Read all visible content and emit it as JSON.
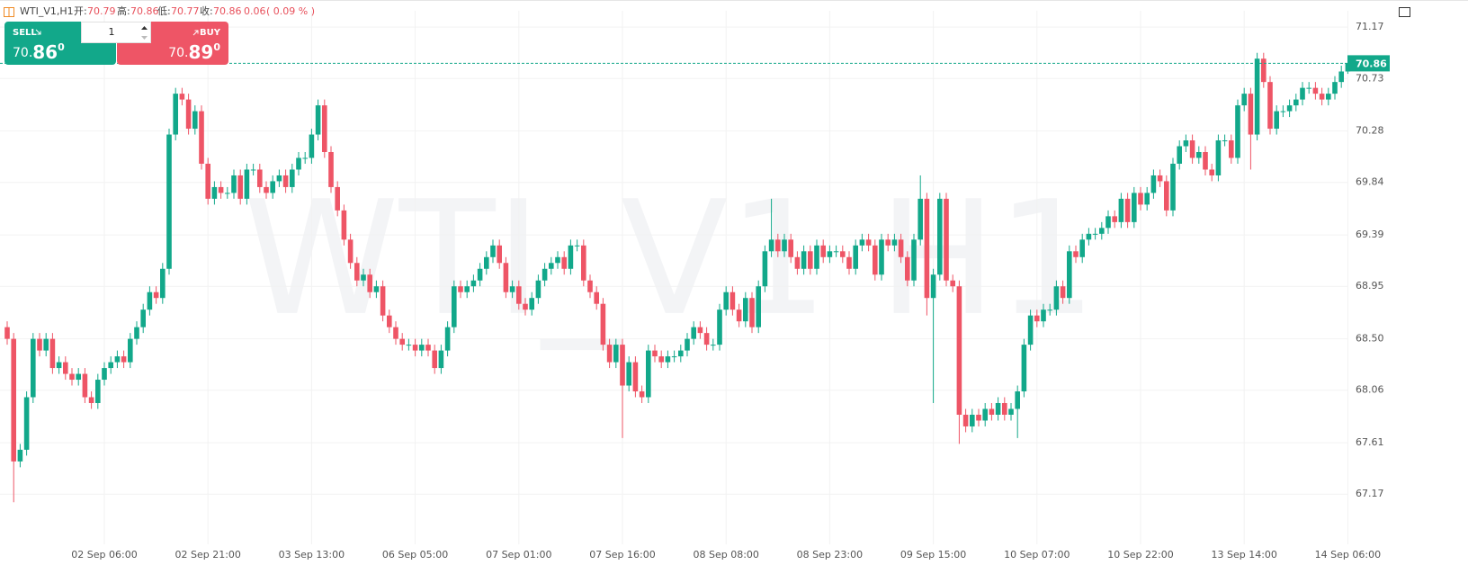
{
  "header": {
    "symbol": "WTI_V1,H1",
    "open_label": "开:",
    "open": 70.79,
    "high_label": "高:",
    "high": 70.86,
    "low_label": "低:",
    "low": 70.77,
    "close_label": "收:",
    "close": 70.86,
    "change": 0.06,
    "change_pct": "( 0.09 % )"
  },
  "trade": {
    "sell_label": "SELL",
    "buy_label": "BUY",
    "quantity": "1",
    "sell_price": {
      "main": "70.",
      "big": "86",
      "small": "0"
    },
    "buy_price": {
      "main": "70.",
      "big": "89",
      "small": "0"
    }
  },
  "chart_data": {
    "type": "candlestick",
    "watermark": "WTI_V1 H1",
    "up_color": "#12a88a",
    "down_color": "#ee5566",
    "grid": true,
    "last_price": 70.86,
    "ylim": [
      66.74,
      71.31
    ],
    "yticks": [
      71.17,
      70.73,
      70.28,
      69.84,
      69.39,
      68.95,
      {
        "value": 68.5,
        "label": "68.50"
      },
      68.06,
      67.61,
      67.17
    ],
    "x": [
      null,
      null,
      null,
      null,
      null,
      null,
      null,
      null,
      null,
      null,
      null,
      null,
      null,
      null,
      null,
      "02 Sep 06:00",
      null,
      null,
      null,
      null,
      null,
      null,
      null,
      null,
      null,
      null,
      null,
      null,
      null,
      null,
      null,
      "02 Sep 21:00",
      null,
      null,
      null,
      null,
      null,
      null,
      null,
      null,
      null,
      null,
      null,
      null,
      null,
      null,
      null,
      "03 Sep 13:00",
      null,
      null,
      null,
      null,
      null,
      null,
      null,
      null,
      null,
      null,
      null,
      null,
      null,
      null,
      null,
      "06 Sep 05:00",
      null,
      null,
      null,
      null,
      null,
      null,
      null,
      null,
      null,
      null,
      null,
      null,
      null,
      null,
      null,
      "07 Sep 01:00",
      null,
      null,
      null,
      null,
      null,
      null,
      null,
      null,
      null,
      null,
      null,
      null,
      null,
      null,
      null,
      "07 Sep 16:00",
      null,
      null,
      null,
      null,
      null,
      null,
      null,
      null,
      null,
      null,
      null,
      null,
      null,
      null,
      null,
      "08 Sep 08:00",
      null,
      null,
      null,
      null,
      null,
      null,
      null,
      null,
      null,
      null,
      null,
      null,
      null,
      null,
      null,
      "08 Sep 23:00",
      null,
      null,
      null,
      null,
      null,
      null,
      null,
      null,
      null,
      null,
      null,
      null,
      null,
      null,
      null,
      "09 Sep 15:00",
      null,
      null,
      null,
      null,
      null,
      null,
      null,
      null,
      null,
      null,
      null,
      null,
      null,
      null,
      null,
      "10 Sep 07:00",
      null,
      null,
      null,
      null,
      null,
      null,
      null,
      null,
      null,
      null,
      null,
      null,
      null,
      null,
      null,
      "10 Sep 22:00",
      null,
      null,
      null,
      null,
      null,
      null,
      null,
      null,
      null,
      null,
      null,
      null,
      null,
      null,
      null,
      "13 Sep 14:00",
      null,
      null,
      null,
      null,
      null,
      null,
      null,
      null,
      null,
      null,
      null,
      null,
      null,
      null,
      null,
      "14 Sep 06:00"
    ],
    "open": [
      68.6,
      68.5,
      67.45,
      67.55,
      68,
      68.5,
      68.4,
      68.5,
      68.25,
      68.3,
      68.2,
      68.15,
      68.2,
      68,
      67.95,
      68.15,
      68.25,
      68.3,
      68.35,
      68.3,
      68.5,
      68.6,
      68.75,
      68.9,
      68.85,
      69.1,
      70.25,
      70.6,
      70.55,
      70.3,
      70.45,
      70,
      69.7,
      69.8,
      69.75,
      69.75,
      69.9,
      69.7,
      69.95,
      69.95,
      69.8,
      69.75,
      69.85,
      69.9,
      69.8,
      69.95,
      70.05,
      70.05,
      70.25,
      70.5,
      70.1,
      69.8,
      69.6,
      69.35,
      69.15,
      69,
      69.05,
      68.9,
      68.95,
      68.7,
      68.6,
      68.5,
      68.45,
      68.45,
      68.4,
      68.45,
      68.4,
      68.25,
      68.4,
      68.6,
      68.95,
      68.9,
      68.95,
      69,
      69.1,
      69.2,
      69.3,
      69.15,
      68.9,
      68.95,
      68.8,
      68.75,
      68.85,
      69,
      69.1,
      69.15,
      69.2,
      69.1,
      69.3,
      69.3,
      69,
      68.9,
      68.8,
      68.45,
      68.3,
      68.45,
      68.1,
      68.3,
      68.05,
      68,
      68.4,
      68.35,
      68.3,
      68.35,
      68.35,
      68.4,
      68.5,
      68.6,
      68.55,
      68.45,
      68.45,
      68.75,
      68.9,
      68.75,
      68.65,
      68.85,
      68.6,
      68.95,
      69.25,
      69.35,
      69.25,
      69.35,
      69.2,
      69.1,
      69.25,
      69.1,
      69.3,
      69.2,
      69.25,
      69.25,
      69.2,
      69.1,
      69.3,
      69.35,
      69.3,
      69.05,
      69.35,
      69.3,
      69.35,
      69.2,
      69,
      69.35,
      69.7,
      68.85,
      69.05,
      69.7,
      69,
      68.95,
      67.85,
      67.75,
      67.85,
      67.8,
      67.9,
      67.85,
      67.95,
      67.85,
      67.9,
      68.05,
      68.45,
      68.7,
      68.65,
      68.75,
      68.75,
      68.95,
      68.85,
      69.25,
      69.2,
      69.35,
      69.4,
      69.4,
      69.45,
      69.55,
      69.5,
      69.7,
      69.5,
      69.75,
      69.65,
      69.75,
      69.9,
      69.85,
      69.6,
      70,
      70.15,
      70.2,
      70.05,
      70.1,
      69.95,
      69.9,
      70.2,
      70.2,
      70.05,
      70.5,
      70.6,
      70.25,
      70.9,
      70.7,
      70.3,
      70.45,
      70.45,
      70.5,
      70.55,
      70.65,
      70.65,
      70.6,
      70.55,
      70.6,
      70.7,
      70.79
    ],
    "high": [
      68.65,
      68.55,
      67.6,
      68.05,
      68.55,
      68.55,
      68.55,
      68.55,
      68.35,
      68.35,
      68.25,
      68.25,
      68.25,
      68.05,
      68.2,
      68.3,
      68.35,
      68.4,
      68.4,
      68.55,
      68.65,
      68.8,
      68.95,
      68.95,
      69.15,
      70.3,
      70.65,
      70.65,
      70.6,
      70.5,
      70.5,
      70.05,
      69.85,
      69.85,
      69.8,
      69.95,
      69.95,
      70,
      70,
      70,
      69.85,
      69.9,
      69.95,
      69.95,
      70,
      70.1,
      70.1,
      70.3,
      70.55,
      70.55,
      70.15,
      69.85,
      69.65,
      69.4,
      69.2,
      69.1,
      69.1,
      69,
      69,
      68.75,
      68.65,
      68.55,
      68.5,
      68.5,
      68.5,
      68.5,
      68.45,
      68.45,
      68.65,
      69,
      69,
      69,
      69.05,
      69.15,
      69.25,
      69.35,
      69.35,
      69.2,
      69,
      69,
      68.85,
      68.9,
      69.05,
      69.15,
      69.2,
      69.25,
      69.25,
      69.35,
      69.35,
      69.35,
      69.05,
      68.95,
      68.85,
      68.5,
      68.5,
      68.5,
      68.35,
      68.35,
      68.1,
      68.45,
      68.45,
      68.4,
      68.4,
      68.4,
      68.45,
      68.55,
      68.65,
      68.65,
      68.6,
      68.5,
      68.8,
      68.95,
      68.95,
      68.8,
      68.9,
      68.9,
      69,
      69.3,
      69.7,
      69.4,
      69.4,
      69.4,
      69.25,
      69.3,
      69.3,
      69.35,
      69.35,
      69.3,
      69.3,
      69.3,
      69.25,
      69.35,
      69.4,
      69.4,
      69.35,
      69.4,
      69.4,
      69.4,
      69.4,
      69.25,
      69.4,
      69.9,
      69.75,
      69.1,
      69.75,
      69.75,
      69.05,
      69,
      67.9,
      67.9,
      67.9,
      67.95,
      67.95,
      68,
      68,
      67.95,
      68.1,
      68.5,
      68.75,
      68.75,
      68.8,
      68.8,
      69,
      69,
      69.3,
      69.3,
      69.4,
      69.45,
      69.45,
      69.5,
      69.6,
      69.6,
      69.75,
      69.75,
      69.8,
      69.8,
      69.8,
      69.95,
      69.95,
      69.9,
      70.05,
      70.2,
      70.25,
      70.25,
      70.15,
      70.15,
      70,
      70.25,
      70.25,
      70.25,
      70.55,
      70.65,
      70.65,
      70.95,
      70.95,
      70.75,
      70.5,
      70.5,
      70.55,
      70.6,
      70.7,
      70.7,
      70.7,
      70.65,
      70.65,
      70.75,
      70.84,
      70.86
    ],
    "low": [
      68.45,
      67.1,
      67.4,
      67.5,
      67.95,
      68.35,
      68.35,
      68.2,
      68.2,
      68.15,
      68.1,
      68.1,
      67.95,
      67.9,
      67.9,
      68.1,
      68.2,
      68.25,
      68.25,
      68.25,
      68.45,
      68.55,
      68.7,
      68.8,
      68.8,
      69.05,
      70.2,
      70.5,
      70.25,
      70.25,
      69.95,
      69.65,
      69.65,
      69.7,
      69.7,
      69.7,
      69.65,
      69.65,
      69.9,
      69.75,
      69.7,
      69.7,
      69.8,
      69.75,
      69.75,
      69.9,
      70,
      70,
      70.2,
      70.05,
      69.75,
      69.55,
      69.3,
      69.1,
      68.95,
      68.95,
      68.85,
      68.85,
      68.65,
      68.55,
      68.45,
      68.4,
      68.4,
      68.35,
      68.35,
      68.35,
      68.2,
      68.2,
      68.35,
      68.55,
      68.85,
      68.85,
      68.9,
      68.95,
      69.05,
      69.15,
      69.1,
      68.85,
      68.85,
      68.75,
      68.7,
      68.7,
      68.8,
      68.95,
      69.05,
      69.1,
      69.05,
      69.05,
      69.25,
      68.95,
      68.85,
      68.75,
      68.4,
      68.25,
      68.25,
      67.65,
      68.05,
      68,
      67.95,
      67.95,
      68.3,
      68.25,
      68.25,
      68.3,
      68.3,
      68.35,
      68.45,
      68.5,
      68.4,
      68.4,
      68.4,
      68.7,
      68.7,
      68.6,
      68.6,
      68.55,
      68.55,
      68.9,
      69.2,
      69.2,
      69.2,
      69.15,
      69.05,
      69.05,
      69.05,
      69.05,
      69.15,
      69.15,
      69.2,
      69.15,
      69.05,
      69.05,
      69.25,
      69.25,
      69,
      69,
      69.25,
      69.25,
      69.15,
      68.95,
      68.95,
      69.3,
      68.7,
      67.95,
      69,
      68.95,
      68.9,
      67.6,
      67.7,
      67.7,
      67.75,
      67.75,
      67.8,
      67.8,
      67.8,
      67.8,
      67.65,
      68,
      68.4,
      68.6,
      68.6,
      68.7,
      68.7,
      68.8,
      68.8,
      69.15,
      69.15,
      69.3,
      69.35,
      69.35,
      69.4,
      69.45,
      69.45,
      69.45,
      69.45,
      69.6,
      69.6,
      69.7,
      69.8,
      69.55,
      69.55,
      69.95,
      70.1,
      70,
      70,
      69.9,
      69.85,
      69.85,
      70.15,
      70,
      70,
      70.45,
      69.95,
      70.2,
      70.65,
      70.25,
      70.25,
      70.4,
      70.4,
      70.45,
      70.5,
      70.6,
      70.55,
      70.5,
      70.5,
      70.55,
      70.65,
      70.77
    ],
    "close": [
      68.5,
      67.45,
      67.55,
      68,
      68.5,
      68.4,
      68.5,
      68.25,
      68.3,
      68.2,
      68.15,
      68.2,
      68,
      67.95,
      68.15,
      68.25,
      68.3,
      68.35,
      68.3,
      68.5,
      68.6,
      68.75,
      68.9,
      68.85,
      69.1,
      70.25,
      70.6,
      70.55,
      70.3,
      70.45,
      70,
      69.7,
      69.8,
      69.75,
      69.75,
      69.9,
      69.7,
      69.95,
      69.95,
      69.8,
      69.75,
      69.85,
      69.9,
      69.8,
      69.95,
      70.05,
      70.05,
      70.25,
      70.5,
      70.1,
      69.8,
      69.6,
      69.35,
      69.15,
      69,
      69.05,
      68.9,
      68.95,
      68.7,
      68.6,
      68.5,
      68.45,
      68.45,
      68.4,
      68.45,
      68.4,
      68.25,
      68.4,
      68.6,
      68.95,
      68.9,
      68.95,
      69,
      69.1,
      69.2,
      69.3,
      69.15,
      68.9,
      68.95,
      68.8,
      68.75,
      68.85,
      69,
      69.1,
      69.15,
      69.2,
      69.1,
      69.3,
      69.3,
      69,
      68.9,
      68.8,
      68.45,
      68.3,
      68.45,
      68.1,
      68.3,
      68.05,
      68,
      68.4,
      68.35,
      68.3,
      68.35,
      68.35,
      68.4,
      68.5,
      68.6,
      68.55,
      68.45,
      68.45,
      68.75,
      68.9,
      68.75,
      68.65,
      68.85,
      68.6,
      68.95,
      69.25,
      69.35,
      69.25,
      69.35,
      69.2,
      69.1,
      69.25,
      69.1,
      69.3,
      69.2,
      69.25,
      69.25,
      69.2,
      69.1,
      69.3,
      69.35,
      69.3,
      69.05,
      69.35,
      69.3,
      69.35,
      69.2,
      69,
      69.35,
      69.7,
      68.85,
      69.05,
      69.7,
      69,
      68.95,
      67.85,
      67.75,
      67.85,
      67.8,
      67.9,
      67.85,
      67.95,
      67.85,
      67.9,
      68.05,
      68.45,
      68.7,
      68.65,
      68.75,
      68.75,
      68.95,
      68.85,
      69.25,
      69.2,
      69.35,
      69.4,
      69.4,
      69.45,
      69.55,
      69.5,
      69.7,
      69.5,
      69.75,
      69.65,
      69.75,
      69.9,
      69.85,
      69.6,
      70,
      70.15,
      70.2,
      70.05,
      70.1,
      69.95,
      69.9,
      70.2,
      70.2,
      70.05,
      70.5,
      70.6,
      70.25,
      70.9,
      70.7,
      70.3,
      70.45,
      70.45,
      70.5,
      70.55,
      70.65,
      70.65,
      70.6,
      70.55,
      70.6,
      70.7,
      70.79,
      70.86
    ]
  }
}
